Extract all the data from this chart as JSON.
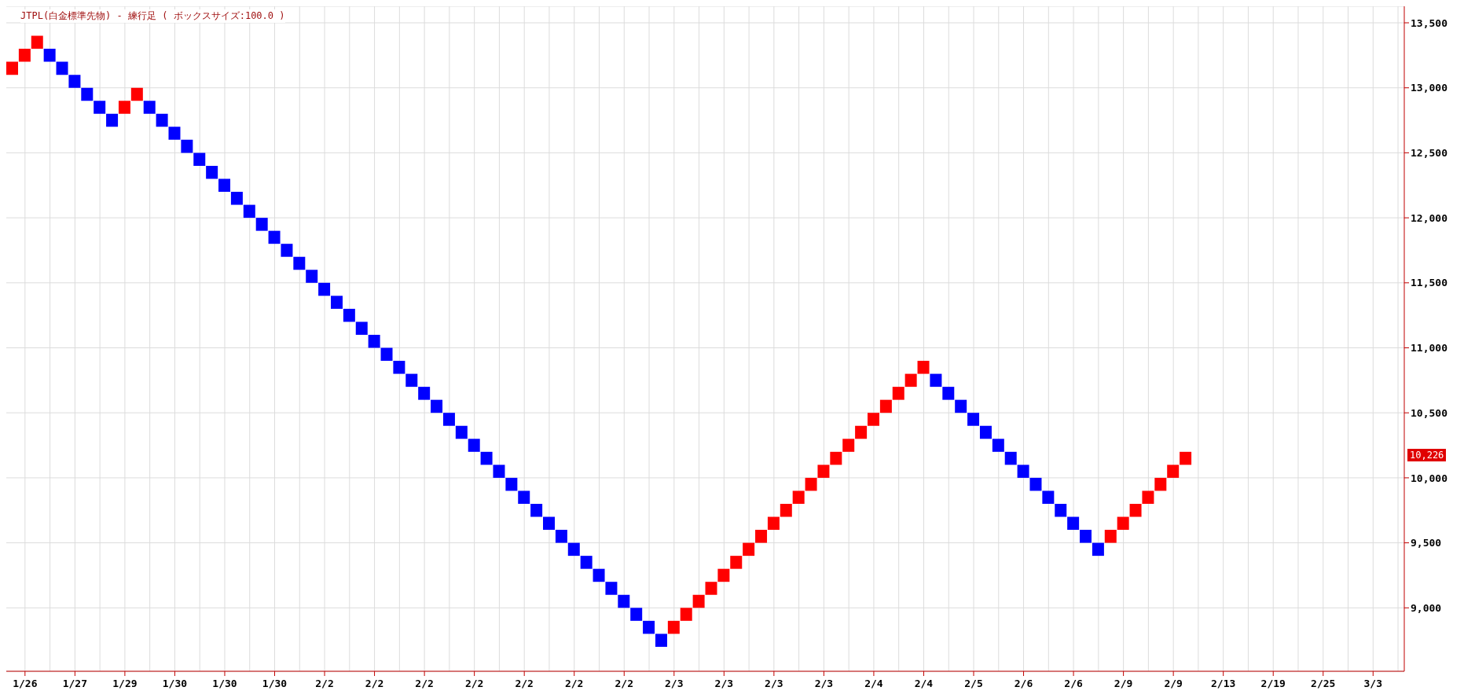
{
  "chart_data": {
    "type": "bar",
    "title": "JTPL(白金標準先物) - 練行足 ( ボックスサイズ:100.0 )",
    "categories": [
      null,
      "1/26",
      null,
      null,
      null,
      "1/27",
      null,
      null,
      null,
      "1/29",
      null,
      null,
      null,
      "1/30",
      null,
      null,
      null,
      "1/30",
      null,
      null,
      null,
      "1/30",
      null,
      null,
      null,
      "2/2",
      null,
      null,
      null,
      "2/2",
      null,
      null,
      null,
      "2/2",
      null,
      null,
      null,
      "2/2",
      null,
      null,
      null,
      "2/2",
      null,
      null,
      null,
      "2/2",
      null,
      null,
      null,
      "2/2",
      null,
      null,
      null,
      "2/3",
      null,
      null,
      null,
      "2/3",
      null,
      null,
      null,
      "2/3",
      null,
      null,
      null,
      "2/3",
      null,
      null,
      null,
      "2/4",
      null,
      null,
      null,
      "2/4",
      null,
      null,
      null,
      "2/5",
      null,
      null,
      null,
      "2/6",
      null,
      null,
      null,
      "2/6",
      null,
      null,
      null,
      "2/9",
      null,
      null,
      null,
      "2/9",
      null,
      null,
      null,
      "2/13",
      null,
      null,
      null,
      "2/19",
      null,
      null,
      null,
      "2/25",
      null,
      null,
      null,
      "3/3",
      null,
      null
    ],
    "values": [
      100,
      100,
      100,
      100,
      100,
      100,
      100,
      100,
      100,
      100,
      100,
      100,
      100,
      100,
      100,
      100,
      100,
      100,
      100,
      100,
      100,
      100,
      100,
      100,
      100,
      100,
      100,
      100,
      100,
      100,
      100,
      100,
      100,
      100,
      100,
      100,
      100,
      100,
      100,
      100,
      100,
      100,
      100,
      100,
      100,
      100,
      100,
      100,
      100,
      100,
      100,
      100,
      100,
      100,
      100,
      100,
      100,
      100,
      100,
      100,
      100,
      100,
      100,
      100,
      100,
      100,
      100,
      100,
      100,
      100,
      100,
      100,
      100,
      100,
      100,
      100,
      100,
      100,
      100,
      100,
      100,
      100,
      100,
      100,
      100,
      100,
      100,
      100,
      100,
      100,
      100,
      100,
      100,
      100,
      100,
      null,
      null,
      null,
      null,
      null,
      null,
      null,
      null,
      null,
      null,
      null,
      null,
      null,
      null,
      null,
      null,
      null
    ],
    "base": [
      13100,
      13200,
      13300,
      13200,
      13100,
      13000,
      12900,
      12800,
      12700,
      12800,
      12900,
      12800,
      12700,
      12600,
      12500,
      12400,
      12300,
      12200,
      12100,
      12000,
      11900,
      11800,
      11700,
      11600,
      11500,
      11400,
      11300,
      11200,
      11100,
      11000,
      10900,
      10800,
      10700,
      10600,
      10500,
      10400,
      10300,
      10200,
      10100,
      10000,
      9900,
      9800,
      9700,
      9600,
      9500,
      9400,
      9300,
      9200,
      9100,
      9000,
      8900,
      8800,
      8700,
      8800,
      8900,
      9000,
      9100,
      9200,
      9300,
      9400,
      9500,
      9600,
      9700,
      9800,
      9900,
      10000,
      10100,
      10200,
      10300,
      10400,
      10500,
      10600,
      10700,
      10800,
      10700,
      10600,
      10500,
      10400,
      10300,
      10200,
      10100,
      10000,
      9900,
      9800,
      9700,
      9600,
      9500,
      9400,
      9500,
      9600,
      9700,
      9800,
      9900,
      10000,
      10100,
      null,
      null,
      null,
      null,
      null,
      null,
      null,
      null,
      null,
      null,
      null,
      null,
      null,
      null,
      null,
      null,
      null
    ],
    "colors": [
      "#ff0000",
      "#ff0000",
      "#ff0000",
      "#0000ff",
      "#0000ff",
      "#0000ff",
      "#0000ff",
      "#0000ff",
      "#0000ff",
      "#ff0000",
      "#ff0000",
      "#0000ff",
      "#0000ff",
      "#0000ff",
      "#0000ff",
      "#0000ff",
      "#0000ff",
      "#0000ff",
      "#0000ff",
      "#0000ff",
      "#0000ff",
      "#0000ff",
      "#0000ff",
      "#0000ff",
      "#0000ff",
      "#0000ff",
      "#0000ff",
      "#0000ff",
      "#0000ff",
      "#0000ff",
      "#0000ff",
      "#0000ff",
      "#0000ff",
      "#0000ff",
      "#0000ff",
      "#0000ff",
      "#0000ff",
      "#0000ff",
      "#0000ff",
      "#0000ff",
      "#0000ff",
      "#0000ff",
      "#0000ff",
      "#0000ff",
      "#0000ff",
      "#0000ff",
      "#0000ff",
      "#0000ff",
      "#0000ff",
      "#0000ff",
      "#0000ff",
      "#0000ff",
      "#0000ff",
      "#ff0000",
      "#ff0000",
      "#ff0000",
      "#ff0000",
      "#ff0000",
      "#ff0000",
      "#ff0000",
      "#ff0000",
      "#ff0000",
      "#ff0000",
      "#ff0000",
      "#ff0000",
      "#ff0000",
      "#ff0000",
      "#ff0000",
      "#ff0000",
      "#ff0000",
      "#ff0000",
      "#ff0000",
      "#ff0000",
      "#ff0000",
      "#0000ff",
      "#0000ff",
      "#0000ff",
      "#0000ff",
      "#0000ff",
      "#0000ff",
      "#0000ff",
      "#0000ff",
      "#0000ff",
      "#0000ff",
      "#0000ff",
      "#0000ff",
      "#0000ff",
      "#0000ff",
      "#ff0000",
      "#ff0000",
      "#ff0000",
      "#ff0000",
      "#ff0000",
      "#ff0000",
      "#ff0000",
      null,
      null,
      null,
      null,
      null,
      null,
      null,
      null,
      null,
      null,
      null,
      null,
      null,
      null,
      null,
      null,
      null
    ],
    "ylim": [
      8512,
      13627
    ],
    "yticks": [
      {
        "value": 9000,
        "label": "9,000"
      },
      {
        "value": 9500,
        "label": "9,500"
      },
      {
        "value": 10000,
        "label": "10,000"
      },
      {
        "value": 10500,
        "label": "10,500"
      },
      {
        "value": 11000,
        "label": "11,000"
      },
      {
        "value": 11500,
        "label": "11,500"
      },
      {
        "value": 12000,
        "label": "12,000"
      },
      {
        "value": 12500,
        "label": "12,500"
      },
      {
        "value": 13000,
        "label": "13,000"
      },
      {
        "value": 13500,
        "label": "13,500"
      }
    ],
    "grid": true,
    "annotations": [
      "10,226"
    ]
  }
}
